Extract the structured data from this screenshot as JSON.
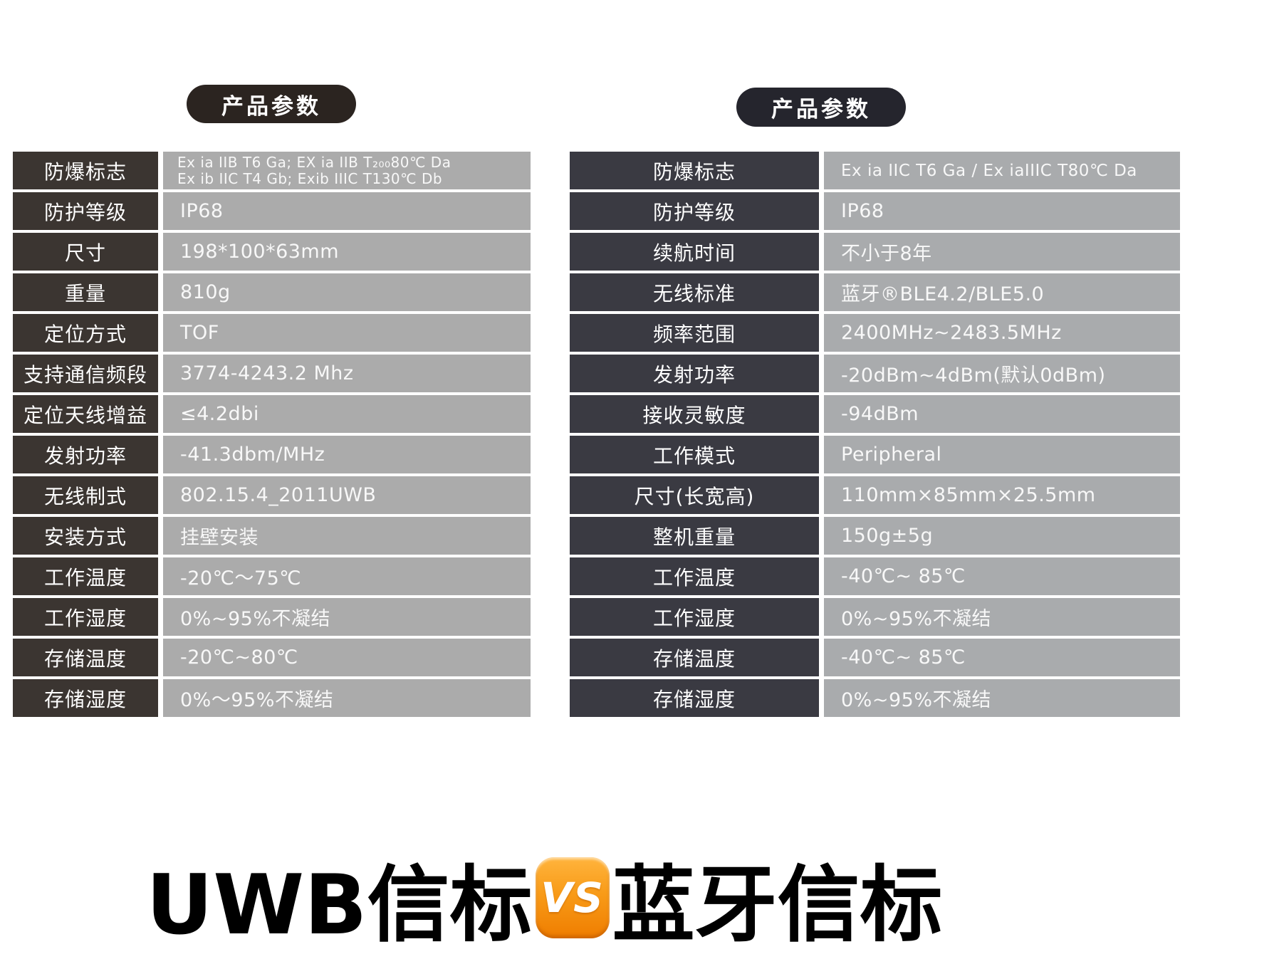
{
  "left_panel": {
    "badge": "产品参数",
    "rows": [
      {
        "label": "防爆标志",
        "value": "Ex ia IIB T6 Ga;  EX ia IIB T₂₀₀80℃ Da",
        "value2": "Ex ib IIC T4 Gb; Exib IIIC T130℃ Db"
      },
      {
        "label": "防护等级",
        "value": "IP68"
      },
      {
        "label": "尺寸",
        "value": "198*100*63mm"
      },
      {
        "label": "重量",
        "value": "810g"
      },
      {
        "label": "定位方式",
        "value": "TOF"
      },
      {
        "label": "支持通信频段",
        "value": "3774-4243.2 Mhz"
      },
      {
        "label": "定位天线增益",
        "value": "≤4.2dbi"
      },
      {
        "label": "发射功率",
        "value": "-41.3dbm/MHz"
      },
      {
        "label": "无线制式",
        "value": "802.15.4_2011UWB"
      },
      {
        "label": "安装方式",
        "value": "挂壁安装"
      },
      {
        "label": "工作温度",
        "value": "-20℃〜75℃"
      },
      {
        "label": "工作湿度",
        "value": "0%~95%不凝结"
      },
      {
        "label": "存储温度",
        "value": "-20℃~80℃"
      },
      {
        "label": "存储湿度",
        "value": "0%〜95%不凝结"
      }
    ]
  },
  "right_panel": {
    "badge": "产品参数",
    "rows": [
      {
        "label": "防爆标志",
        "value": "Ex ia IIC T6 Ga / Ex iaIIIC T80℃ Da"
      },
      {
        "label": "防护等级",
        "value": "IP68"
      },
      {
        "label": "续航时间",
        "value": "不小于8年"
      },
      {
        "label": "无线标准",
        "value": "蓝牙®BLE4.2/BLE5.0"
      },
      {
        "label": "频率范围",
        "value": "2400MHz~2483.5MHz"
      },
      {
        "label": "发射功率",
        "value": "-20dBm~4dBm(默认0dBm)"
      },
      {
        "label": "接收灵敏度",
        "value": "-94dBm"
      },
      {
        "label": "工作模式",
        "value": "Peripheral"
      },
      {
        "label": "尺寸(长宽高)",
        "value": "110mm×85mm×25.5mm"
      },
      {
        "label": "整机重量",
        "value": "150g±5g"
      },
      {
        "label": "工作温度",
        "value": "-40℃~ 85℃"
      },
      {
        "label": "工作湿度",
        "value": "0%~95%不凝结"
      },
      {
        "label": "存储温度",
        "value": "-40℃~ 85℃"
      },
      {
        "label": "存储湿度",
        "value": "0%~95%不凝结"
      }
    ]
  },
  "footer": {
    "left_title": "UWB信标",
    "vs_label": "VS",
    "right_title": "蓝牙信标"
  },
  "colors": {
    "label_bg_left": "#3b3531",
    "label_bg_right": "#3a3a42",
    "value_bg": "#ababab",
    "badge_bg_left": "#2b2420",
    "badge_bg_right": "#25252d",
    "vs_orange": "#f89b18",
    "title_color": "#000000"
  }
}
